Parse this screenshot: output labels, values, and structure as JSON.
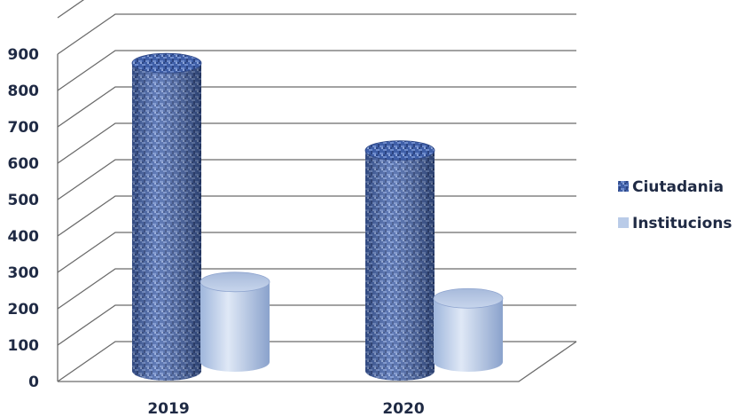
{
  "chart_data": {
    "type": "bar",
    "categories": [
      "2019",
      "2020"
    ],
    "series": [
      {
        "name": "Ciutadania",
        "values": [
          880,
          640
        ],
        "color": "#4a6bb3",
        "pattern": "woven-texture"
      },
      {
        "name": "Institucions",
        "values": [
          220,
          175
        ],
        "color": "#b9cbe8",
        "pattern": "solid"
      }
    ],
    "title": "",
    "xlabel": "",
    "ylabel": "",
    "ylim": [
      0,
      1000
    ],
    "yticks": [
      "0",
      "100",
      "200",
      "300",
      "400",
      "500",
      "600",
      "700",
      "800",
      "900"
    ],
    "grid": true,
    "legend_position": "right",
    "style": "3d-cylinder"
  }
}
